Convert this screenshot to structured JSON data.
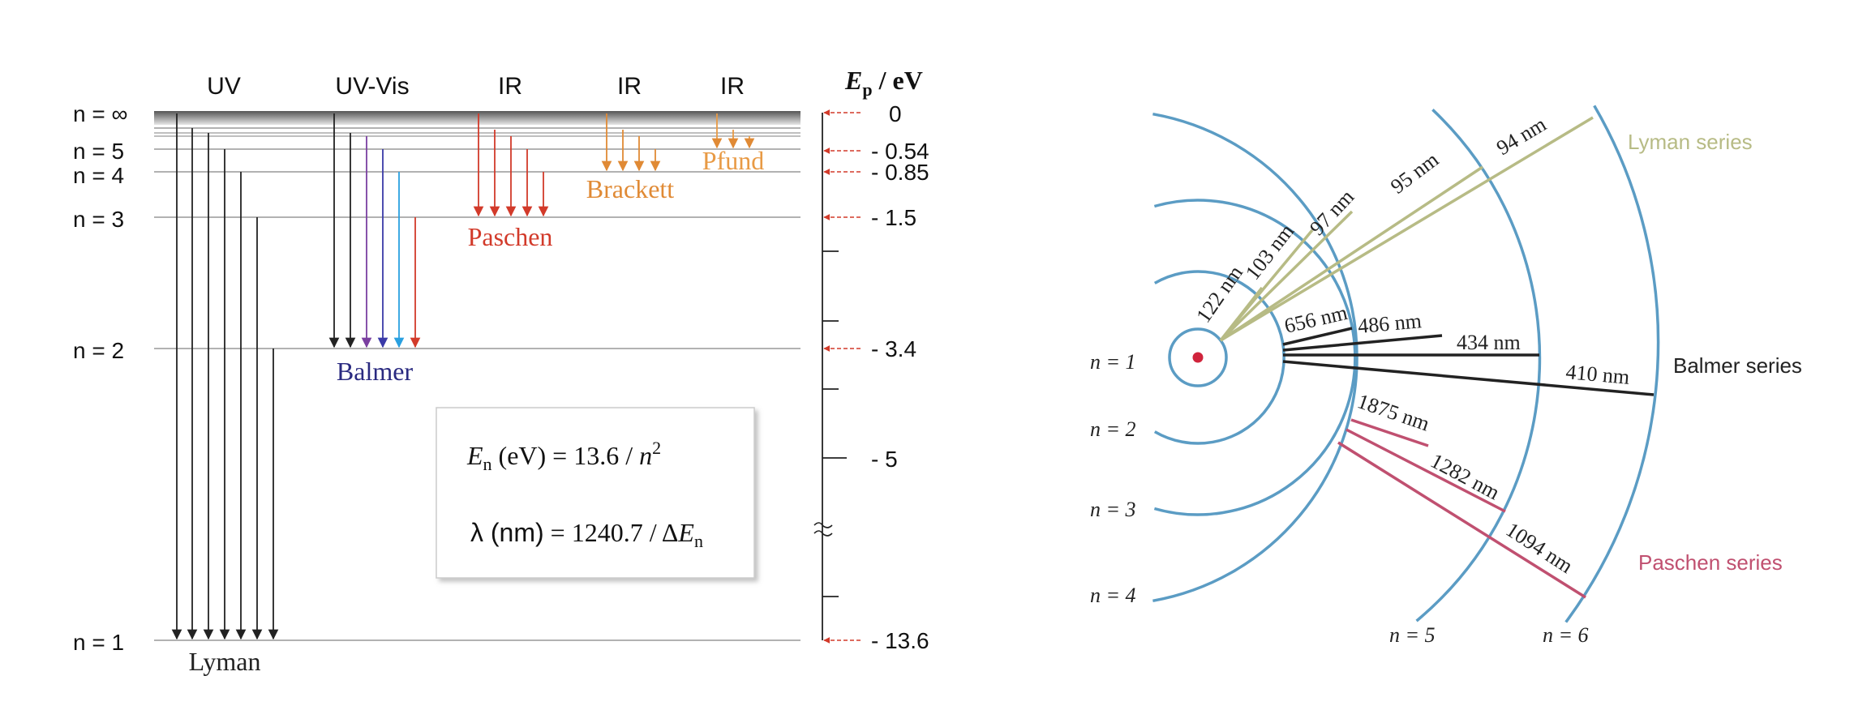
{
  "energy_diagram": {
    "axis_title": "E",
    "axis_title_sub": "p",
    "axis_title_unit": " / eV",
    "region_labels": [
      "UV",
      "UV-Vis",
      "IR",
      "IR",
      "IR"
    ],
    "levels": [
      {
        "label": "n = ∞",
        "energy": "0"
      },
      {
        "label": "n = 5",
        "energy": "- 0.54"
      },
      {
        "label": "n = 4",
        "energy": "- 0.85"
      },
      {
        "label": "n = 3",
        "energy": "- 1.5"
      },
      {
        "label": "n = 2",
        "energy": "- 3.4"
      },
      {
        "label": "n = 1",
        "energy": "- 13.6"
      }
    ],
    "extra_tick": "- 5",
    "series": [
      {
        "name": "Lyman",
        "color": "#222222"
      },
      {
        "name": "Balmer",
        "color": "#2a2a80"
      },
      {
        "name": "Paschen",
        "color": "#d23a2a"
      },
      {
        "name": "Brackett",
        "color": "#e08a35"
      },
      {
        "name": "Pfund",
        "color": "#e89a45"
      }
    ],
    "formula": {
      "line1_var": "E",
      "line1_sub": "n",
      "line1_rest": " (eV) = 13.6 / ",
      "line1_n": "n",
      "line1_sup": "2",
      "line2_lambda": "λ (nm)",
      "line2_rest": " = 1240.7 / Δ",
      "line2_var": "E",
      "line2_sub": "n"
    }
  },
  "bohr_diagram": {
    "orbit_labels": [
      "n = 1",
      "n = 2",
      "n = 3",
      "n = 4",
      "n = 5",
      "n = 6"
    ],
    "lyman": {
      "name": "Lyman series",
      "color": "#b7bb85",
      "wavelengths": [
        "122 nm",
        "103 nm",
        "97 nm",
        "95 nm",
        "94 nm"
      ]
    },
    "balmer": {
      "name": "Balmer series",
      "color": "#222222",
      "wavelengths": [
        "656 nm",
        "486 nm",
        "434 nm",
        "410 nm"
      ]
    },
    "paschen": {
      "name": "Paschen series",
      "color": "#c05070",
      "wavelengths": [
        "1875 nm",
        "1282 nm",
        "1094 nm"
      ]
    },
    "orbit_color": "#5b9cc4",
    "nucleus_color": "#d0243c"
  }
}
